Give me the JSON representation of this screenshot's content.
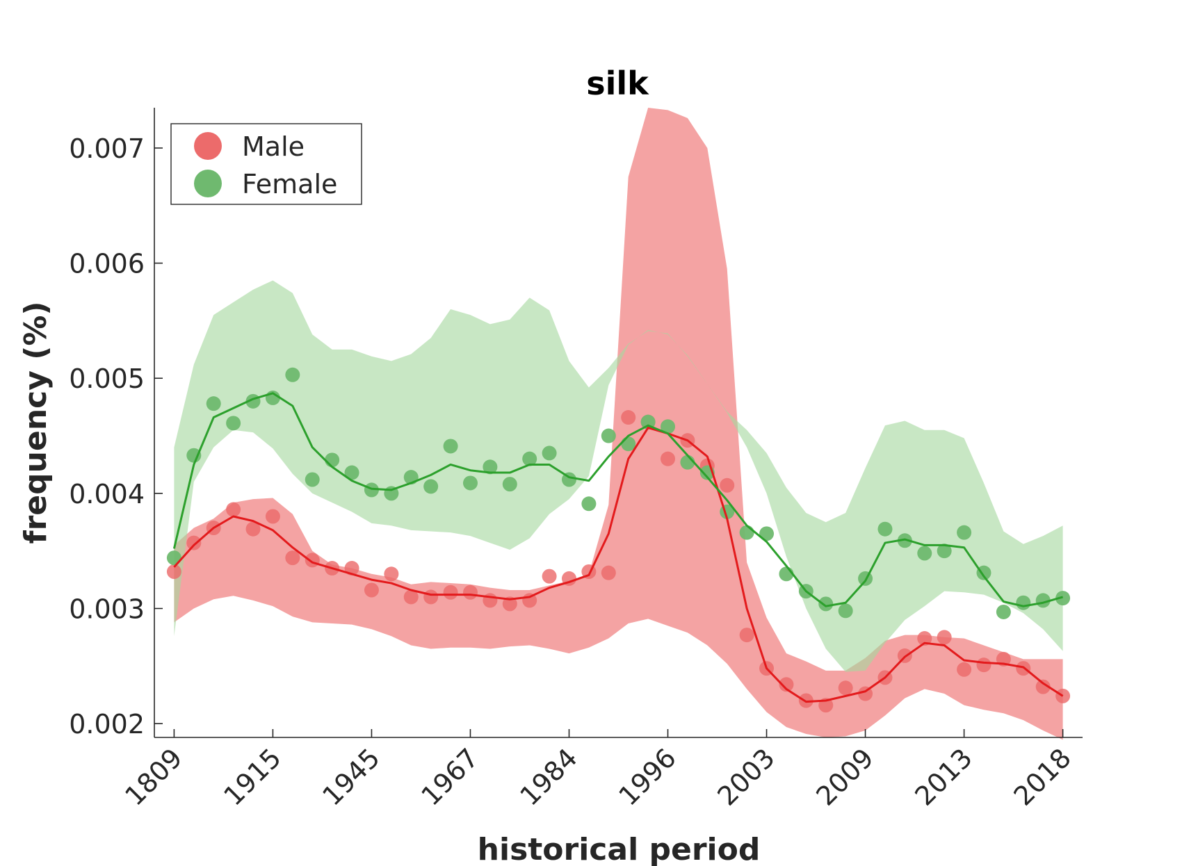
{
  "chart_data": {
    "type": "line",
    "title": "silk",
    "xlabel": "historical period",
    "ylabel": "frequency (%)",
    "ylim": [
      0.00188,
      0.00735
    ],
    "yticks": [
      "0.002",
      "0.003",
      "0.004",
      "0.005",
      "0.006",
      "0.007"
    ],
    "ytick_values": [
      0.002,
      0.003,
      0.004,
      0.005,
      0.006,
      0.007
    ],
    "xticks": [
      "1809",
      "1915",
      "1945",
      "1967",
      "1984",
      "1996",
      "2003",
      "2009",
      "2013",
      "2018"
    ],
    "xtick_positions": [
      0,
      5,
      10,
      15,
      20,
      25,
      30,
      35,
      40,
      45
    ],
    "x_index_range": [
      -1,
      46
    ],
    "legend_position": "top-left",
    "grid": false,
    "series": [
      {
        "name": "Male",
        "color": "#e31a1c",
        "point_color": "#ec6b6b",
        "band_color": "#f4a3a3",
        "points": [
          0.00332,
          0.00357,
          0.0037,
          0.00386,
          0.00369,
          0.0038,
          0.00344,
          0.00342,
          0.00335,
          0.00335,
          0.00316,
          0.0033,
          0.0031,
          0.0031,
          0.00314,
          0.00314,
          0.00307,
          0.00304,
          0.00307,
          0.00328,
          0.00326,
          0.00332,
          0.00331,
          0.00466,
          0.00462,
          0.0043,
          0.00446,
          0.00424,
          0.00407,
          0.00277,
          0.00248,
          0.00234,
          0.0022,
          0.00216,
          0.00231,
          0.00226,
          0.0024,
          0.00259,
          0.00274,
          0.00275,
          0.00247,
          0.00251,
          0.00256,
          0.00248,
          0.00232,
          0.00224
        ],
        "trend": [
          0.00336,
          0.00355,
          0.0037,
          0.0038,
          0.00376,
          0.00368,
          0.00353,
          0.0034,
          0.00335,
          0.0033,
          0.00325,
          0.00322,
          0.00316,
          0.00312,
          0.00312,
          0.00312,
          0.0031,
          0.00308,
          0.0031,
          0.00318,
          0.00323,
          0.00329,
          0.00365,
          0.0043,
          0.00457,
          0.00452,
          0.00446,
          0.00432,
          0.00378,
          0.003,
          0.00248,
          0.0023,
          0.00219,
          0.0022,
          0.00224,
          0.00228,
          0.0024,
          0.00258,
          0.0027,
          0.00268,
          0.00255,
          0.00253,
          0.00252,
          0.00249,
          0.00235,
          0.00224
        ],
        "band_upper": [
          0.00355,
          0.0037,
          0.00378,
          0.00392,
          0.00395,
          0.00396,
          0.00382,
          0.0035,
          0.00338,
          0.00335,
          0.0033,
          0.00327,
          0.00321,
          0.00323,
          0.00322,
          0.00321,
          0.00318,
          0.00316,
          0.00316,
          0.0032,
          0.00324,
          0.0033,
          0.0039,
          0.00675,
          0.00735,
          0.00733,
          0.00726,
          0.007,
          0.00595,
          0.0034,
          0.00292,
          0.00261,
          0.00254,
          0.00246,
          0.00246,
          0.00257,
          0.00272,
          0.00277,
          0.00277,
          0.00275,
          0.00274,
          0.00268,
          0.00262,
          0.00256,
          0.00256,
          0.00256
        ],
        "band_lower": [
          0.00288,
          0.003,
          0.00308,
          0.00311,
          0.00307,
          0.00302,
          0.00293,
          0.00288,
          0.00287,
          0.00286,
          0.00282,
          0.00276,
          0.00268,
          0.00265,
          0.00266,
          0.00266,
          0.00265,
          0.00267,
          0.00268,
          0.00265,
          0.00261,
          0.00266,
          0.00274,
          0.00287,
          0.00291,
          0.00285,
          0.00279,
          0.00268,
          0.00252,
          0.0023,
          0.0021,
          0.00197,
          0.00191,
          0.00188,
          0.00189,
          0.00194,
          0.00207,
          0.00222,
          0.0023,
          0.00226,
          0.00216,
          0.00212,
          0.00209,
          0.00203,
          0.00194,
          0.00186
        ]
      },
      {
        "name": "Female",
        "color": "#2ca02c",
        "point_color": "#6fb96f",
        "band_color": "#a6d8a0",
        "points": [
          0.00344,
          0.00433,
          0.00478,
          0.00461,
          0.0048,
          0.00483,
          0.00503,
          0.00412,
          0.00429,
          0.00418,
          0.00403,
          0.004,
          0.00414,
          0.00406,
          0.00441,
          0.00409,
          0.00423,
          0.00408,
          0.0043,
          0.00435,
          0.00412,
          0.00391,
          0.0045,
          0.00443,
          0.00462,
          0.00458,
          0.00427,
          0.00418,
          0.00384,
          0.00366,
          0.00365,
          0.0033,
          0.00315,
          0.00304,
          0.00298,
          0.00326,
          0.00369,
          0.00359,
          0.00348,
          0.0035,
          0.00366,
          0.00331,
          0.00297,
          0.00305,
          0.00307,
          0.00309
        ],
        "trend": [
          0.00352,
          0.00425,
          0.00466,
          0.00474,
          0.00482,
          0.00487,
          0.00476,
          0.0044,
          0.00423,
          0.00411,
          0.00404,
          0.00403,
          0.00409,
          0.00416,
          0.00425,
          0.0042,
          0.00418,
          0.00418,
          0.00425,
          0.00425,
          0.00414,
          0.00411,
          0.00432,
          0.0045,
          0.00459,
          0.00452,
          0.00433,
          0.00414,
          0.00394,
          0.00372,
          0.00358,
          0.00337,
          0.00315,
          0.00302,
          0.00305,
          0.00324,
          0.00357,
          0.0036,
          0.00355,
          0.00355,
          0.00353,
          0.00328,
          0.00306,
          0.00302,
          0.00305,
          0.0031
        ],
        "band_upper": [
          0.0044,
          0.00512,
          0.00555,
          0.00566,
          0.00577,
          0.00585,
          0.00574,
          0.00538,
          0.00525,
          0.00525,
          0.00519,
          0.00515,
          0.00521,
          0.00535,
          0.0056,
          0.00555,
          0.00547,
          0.00551,
          0.0057,
          0.00559,
          0.00515,
          0.00492,
          0.00509,
          0.0053,
          0.00541,
          0.00539,
          0.00519,
          0.00495,
          0.00471,
          0.00455,
          0.00435,
          0.00405,
          0.00383,
          0.00375,
          0.00383,
          0.00422,
          0.00459,
          0.00463,
          0.00455,
          0.00455,
          0.00448,
          0.00409,
          0.00367,
          0.00356,
          0.00363,
          0.00372
        ],
        "band_lower": [
          0.00276,
          0.0041,
          0.0044,
          0.00455,
          0.00453,
          0.00439,
          0.00417,
          0.004,
          0.00392,
          0.00384,
          0.00374,
          0.00372,
          0.00368,
          0.00367,
          0.00366,
          0.00363,
          0.00357,
          0.00351,
          0.00361,
          0.00382,
          0.00395,
          0.00415,
          0.00494,
          0.00529,
          0.00542,
          0.00538,
          0.0052,
          0.00495,
          0.0047,
          0.0044,
          0.004,
          0.00345,
          0.003,
          0.00265,
          0.00245,
          0.00246,
          0.0027,
          0.0029,
          0.00302,
          0.00315,
          0.00314,
          0.00312,
          0.00305,
          0.00296,
          0.00282,
          0.00263
        ]
      }
    ]
  }
}
